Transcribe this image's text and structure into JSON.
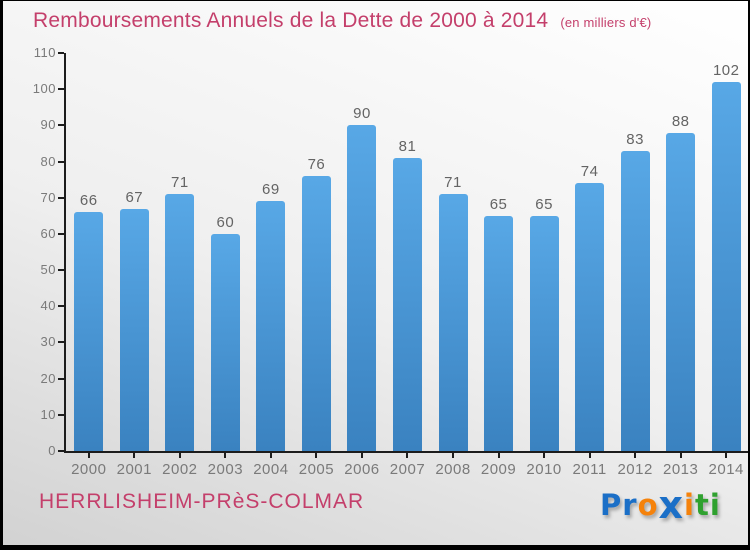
{
  "title": "Remboursements Annuels de la Dette de 2000 à 2014",
  "subtitle": "(en milliers d'€)",
  "footer": {
    "commune": "HERRLISHEIM-PRèS-COLMAR"
  },
  "logo": {
    "name": "Proxiti",
    "letters": [
      {
        "ch": "P",
        "color": "#1b6fc7"
      },
      {
        "ch": "r",
        "color": "#1b6fc7"
      },
      {
        "ch": "o",
        "color": "#f5820b"
      },
      {
        "ch": "x",
        "color": "#1b6fc7",
        "big": true
      },
      {
        "ch": "i",
        "color": "#f5820b"
      },
      {
        "ch": "t",
        "color": "#2fa12f"
      },
      {
        "ch": "i",
        "color": "#2fa12f"
      }
    ]
  },
  "colors": {
    "title": "#c43f6b",
    "commune": "#c43f6b",
    "axis": "#1c1c1c",
    "tick_label": "#7a7a7a",
    "value_label": "#646464",
    "bar_top": "#58a8e6",
    "bar_bottom": "#3a82c0",
    "background_top": "#ffffff",
    "background_bottom": "#d2d2d2"
  },
  "chart_data": {
    "type": "bar",
    "title": "Remboursements Annuels de la Dette de 2000 à 2014",
    "subtitle": "(en milliers d'€)",
    "xlabel": "",
    "ylabel": "",
    "categories": [
      "2000",
      "2001",
      "2002",
      "2003",
      "2004",
      "2005",
      "2006",
      "2007",
      "2008",
      "2009",
      "2010",
      "2011",
      "2012",
      "2013",
      "2014"
    ],
    "values": [
      66,
      67,
      71,
      60,
      69,
      76,
      90,
      81,
      71,
      65,
      65,
      74,
      83,
      88,
      102
    ],
    "ylim": [
      0,
      110
    ],
    "ytick_step": 10,
    "grid": false,
    "legend_position": "none",
    "bar_color_top": "#58a8e6",
    "bar_color_bottom": "#3a82c0"
  }
}
